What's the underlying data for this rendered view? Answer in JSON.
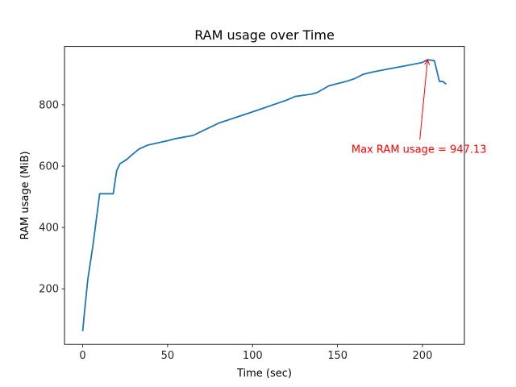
{
  "chart_data": {
    "type": "line",
    "title": "RAM usage over Time",
    "xlabel": "Time (sec)",
    "ylabel": "RAM usage (MiB)",
    "xlim": [
      -10.7,
      224.7
    ],
    "ylim": [
      18.7,
      990.2
    ],
    "xticks": [
      0,
      50,
      100,
      150,
      200
    ],
    "yticks": [
      200,
      400,
      600,
      800
    ],
    "grid": false,
    "line_color": "#1f77b4",
    "series": [
      {
        "x": [
          0,
          1,
          3,
          6,
          10,
          18,
          20,
          22,
          24,
          26,
          28,
          33,
          38,
          50,
          55,
          65,
          68,
          80,
          100,
          120,
          123,
          125,
          135,
          138,
          145,
          155,
          160,
          165,
          170,
          180,
          190,
          200,
          203,
          207,
          210,
          212,
          214
        ],
        "y": [
          62,
          120,
          230,
          340,
          510,
          510,
          585,
          608,
          615,
          622,
          632,
          655,
          668,
          683,
          690,
          700,
          708,
          740,
          777,
          815,
          822,
          827,
          835,
          840,
          862,
          876,
          885,
          899,
          906,
          917,
          927,
          938,
          947.13,
          944,
          876,
          876,
          867
        ]
      }
    ],
    "annotations": [
      {
        "text": "Max RAM usage = 947.13",
        "xy": [
          203,
          947.13
        ],
        "text_anchor": [
          198,
          655
        ],
        "color": "#ff0000"
      }
    ]
  }
}
